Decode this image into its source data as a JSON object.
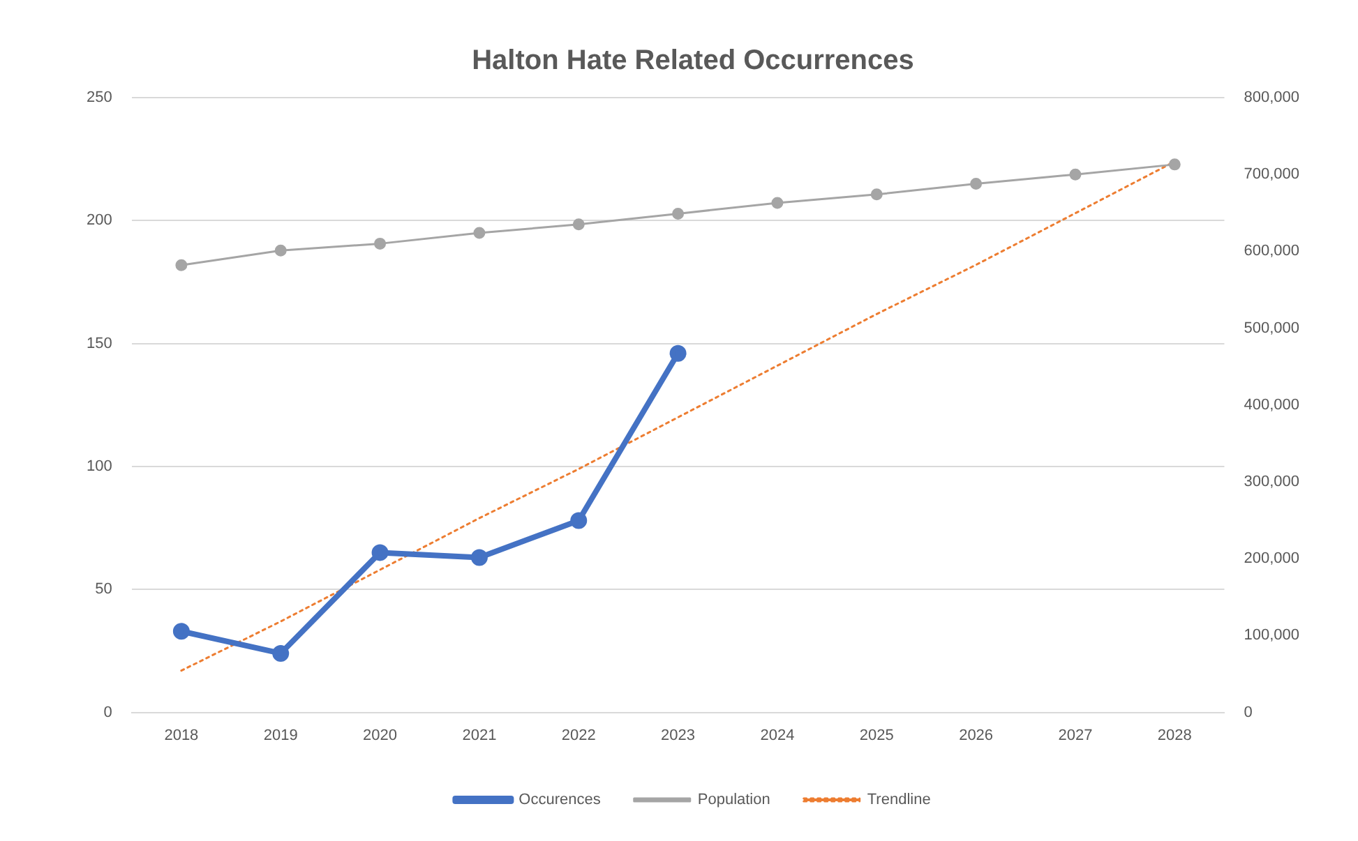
{
  "chart_data": {
    "type": "line",
    "title": "Halton Hate Related Occurrences",
    "categories": [
      "2018",
      "2019",
      "2020",
      "2021",
      "2022",
      "2023",
      "2024",
      "2025",
      "2026",
      "2027",
      "2028"
    ],
    "series": [
      {
        "name": "Occurences",
        "color": "#4472c4",
        "marker": "circle",
        "line_style": "solid",
        "values": [
          33,
          24,
          65,
          63,
          78,
          146,
          null,
          null,
          null,
          null,
          null
        ]
      },
      {
        "name": "Population",
        "color": "#a5a5a5",
        "marker": "circle",
        "line_style": "solid",
        "axis": "y2",
        "values": [
          582000,
          601000,
          610000,
          624000,
          635000,
          649000,
          663000,
          674000,
          688000,
          700000,
          713000
        ]
      },
      {
        "name": "Trendline",
        "color": "#ed7d31",
        "marker": "none",
        "line_style": "dotted",
        "values": [
          17,
          37,
          58,
          79,
          99,
          120,
          141,
          162,
          182,
          203,
          224
        ]
      }
    ],
    "ylim": [
      0,
      250
    ],
    "yticks": [
      0,
      50,
      100,
      150,
      200,
      250
    ],
    "y2lim": [
      0,
      800000
    ],
    "y2ticks": [
      {
        "value": 0,
        "label": "0"
      },
      {
        "value": 100000,
        "label": "100,000"
      },
      {
        "value": 200000,
        "label": "200,000"
      },
      {
        "value": 300000,
        "label": "300,000"
      },
      {
        "value": 400000,
        "label": "400,000"
      },
      {
        "value": 500000,
        "label": "500,000"
      },
      {
        "value": 600000,
        "label": "600,000"
      },
      {
        "value": 700000,
        "label": "700,000"
      },
      {
        "value": 800000,
        "label": "800,000"
      }
    ],
    "grid": "y",
    "legend": "bottom"
  }
}
